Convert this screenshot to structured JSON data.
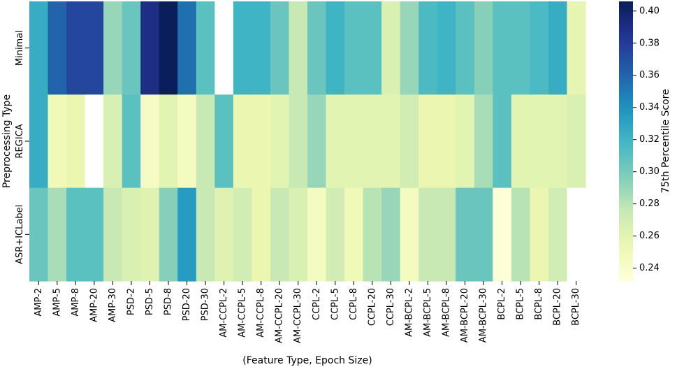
{
  "chart_data": {
    "type": "heatmap",
    "xlabel": "(Feature Type, Epoch Size)",
    "ylabel": "Preprocessing Type",
    "x_categories": [
      "AMP-2",
      "AMP-5",
      "AMP-8",
      "AMP-20",
      "AMP-30",
      "PSD-2",
      "PSD-5",
      "PSD-8",
      "PSD-20",
      "PSD-30",
      "AM-CCPL-2",
      "AM-CCPL-5",
      "AM-CCPL-8",
      "AM-CCPL-20",
      "AM-CCPL-30",
      "CCPL-2",
      "CCPL-5",
      "CCPL-8",
      "CCPL-20",
      "CCPL-30",
      "AM-BCPL-2",
      "AM-BCPL-5",
      "AM-BCPL-8",
      "AM-BCPL-20",
      "AM-BCPL-30",
      "BCPL-2",
      "BCPL-5",
      "BCPL-8",
      "BCPL-20",
      "BCPL-30"
    ],
    "y_categories": [
      "Minimal",
      "REGICA",
      "ASR+ICLabel"
    ],
    "values": [
      [
        0.325,
        0.36,
        0.375,
        0.375,
        0.29,
        0.305,
        0.39,
        0.405,
        0.355,
        0.31,
        null,
        0.32,
        0.32,
        0.305,
        0.275,
        0.305,
        0.32,
        0.31,
        0.31,
        0.265,
        0.29,
        0.315,
        0.32,
        0.31,
        0.295,
        0.31,
        0.31,
        0.315,
        0.325,
        0.258
      ],
      [
        0.325,
        0.25,
        0.255,
        null,
        0.265,
        0.31,
        0.243,
        0.26,
        0.245,
        0.275,
        0.31,
        0.255,
        0.255,
        0.26,
        0.275,
        0.29,
        0.26,
        0.26,
        0.26,
        0.26,
        0.27,
        0.255,
        0.255,
        0.26,
        0.285,
        0.31,
        0.26,
        0.26,
        0.26,
        0.265
      ],
      [
        0.305,
        0.285,
        0.31,
        0.31,
        0.275,
        0.265,
        0.262,
        0.295,
        0.335,
        0.275,
        0.262,
        0.27,
        0.255,
        0.275,
        0.265,
        0.245,
        0.27,
        0.25,
        0.28,
        0.29,
        0.245,
        0.275,
        0.275,
        0.305,
        0.305,
        0.233,
        0.28,
        0.255,
        0.27,
        null
      ]
    ],
    "colorbar": {
      "label": "75th Percentile Score",
      "vmin": 0.232,
      "vmax": 0.406,
      "ticks": [
        "0.24",
        "0.26",
        "0.28",
        "0.30",
        "0.32",
        "0.34",
        "0.36",
        "0.38",
        "0.40"
      ],
      "colormap": "YlGnBu"
    }
  }
}
